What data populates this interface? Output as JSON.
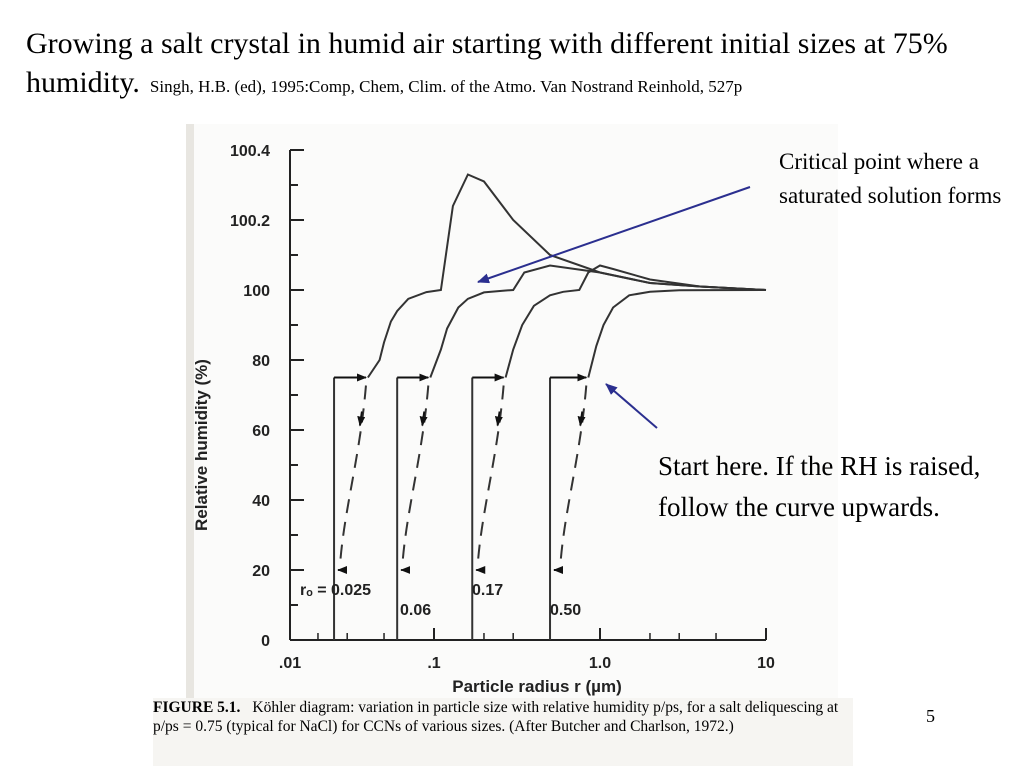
{
  "slide": {
    "title": "Growing a salt crystal in humid air starting with different initial sizes at 75% humidity.",
    "citation": "Singh, H.B. (ed), 1995:Comp, Chem, Clim. of the Atmo. Van Nostrand Reinhold, 527p",
    "annotation_critical": "Critical point where a saturated solution forms",
    "annotation_start": "Start here. If the RH is raised, follow the curve upwards.",
    "page_number": "5"
  },
  "caption": {
    "label": "FIGURE 5.1.",
    "text": "Köhler diagram: variation in particle size with relative humidity p/ps, for a salt deliquescing at p/ps = 0.75 (typical for NaCl) for CCNs of various sizes. (After Butcher and Charlson, 1972.)"
  },
  "chart_data": {
    "type": "line",
    "xlabel": "Particle radius r (µm)",
    "ylabel": "Relative humidity (%)",
    "xscale": "log",
    "xlim": [
      0.01,
      10
    ],
    "x_ticks": [
      ".01",
      ".1",
      "1.0",
      "10"
    ],
    "y_ticks": [
      "0",
      "20",
      "40",
      "60",
      "80",
      "100",
      "100.2",
      "100.4"
    ],
    "y_axis_note": "broken scale: 0-100 linear, expanded above 100",
    "grid": false,
    "series": [
      {
        "initial_radius_label": "rₒ = 0.025",
        "deliquescence_rh": 75,
        "x": [
          0.025,
          0.04,
          0.047,
          0.05,
          0.055,
          0.06,
          0.07,
          0.09,
          0.11,
          0.13,
          0.16,
          0.2,
          0.3,
          0.5,
          1.0,
          2.0,
          4.0,
          10.0
        ],
        "y": [
          20,
          75,
          80,
          85,
          91,
          94,
          97.5,
          99.4,
          100.0,
          100.24,
          100.33,
          100.31,
          100.2,
          100.1,
          100.05,
          100.02,
          100.01,
          100.0
        ]
      },
      {
        "initial_radius_label": "0.06",
        "deliquescence_rh": 75,
        "x": [
          0.06,
          0.095,
          0.11,
          0.12,
          0.14,
          0.16,
          0.2,
          0.26,
          0.3,
          0.35,
          0.5,
          1.0,
          2.0,
          4.0,
          10.0
        ],
        "y": [
          20,
          75,
          83,
          89,
          95,
          97.5,
          99.3,
          99.8,
          100.0,
          100.05,
          100.07,
          100.05,
          100.02,
          100.01,
          100.0
        ]
      },
      {
        "initial_radius_label": "0.17",
        "deliquescence_rh": 75,
        "x": [
          0.17,
          0.27,
          0.3,
          0.34,
          0.4,
          0.5,
          0.6,
          0.75,
          0.85,
          1.0,
          1.2,
          2.0,
          4.0,
          10.0
        ],
        "y": [
          20,
          75,
          83,
          90,
          95.5,
          98.5,
          99.5,
          100.0,
          100.05,
          100.07,
          100.06,
          100.03,
          100.01,
          100.0
        ]
      },
      {
        "initial_radius_label": "0.50",
        "deliquescence_rh": 75,
        "x": [
          0.5,
          0.85,
          0.95,
          1.05,
          1.2,
          1.5,
          2.0,
          3.0,
          5.0,
          10.0
        ],
        "y": [
          20,
          75,
          84,
          90,
          95,
          98.5,
          99.5,
          99.9,
          99.98,
          100.0
        ]
      }
    ]
  }
}
